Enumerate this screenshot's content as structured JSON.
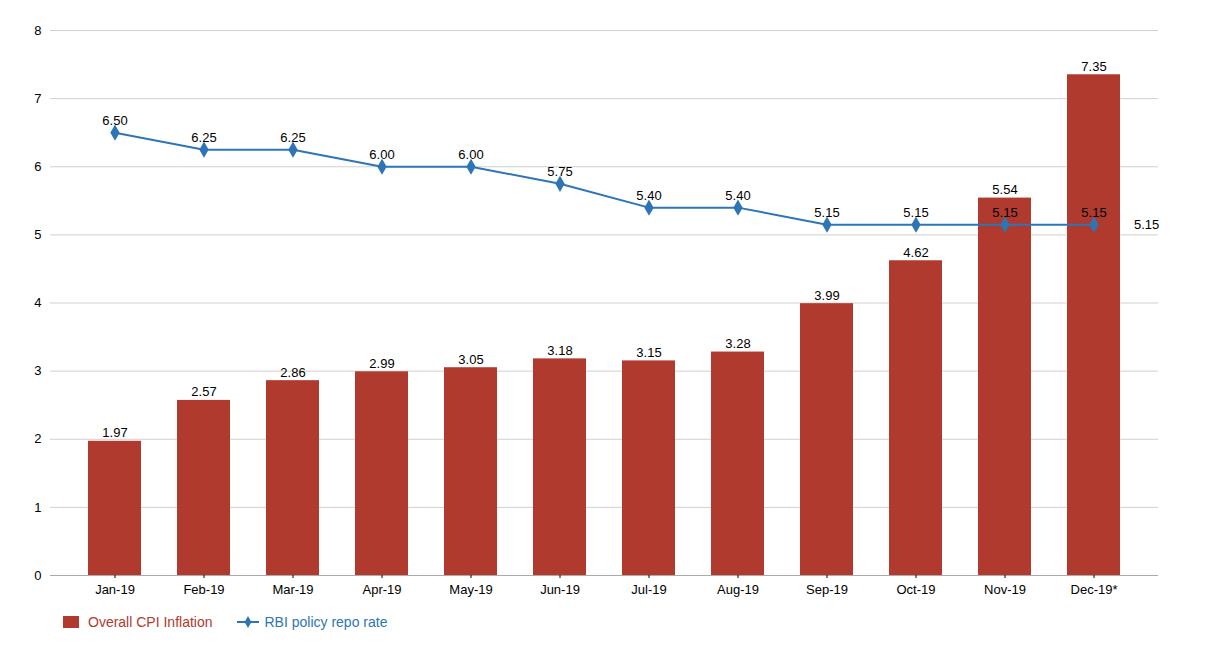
{
  "chart_data": {
    "type": "bar",
    "categories": [
      "Jan-19",
      "Feb-19",
      "Mar-19",
      "Apr-19",
      "May-19",
      "Jun-19",
      "Jul-19",
      "Aug-19",
      "Sep-19",
      "Oct-19",
      "Nov-19",
      "Dec-19*"
    ],
    "series": [
      {
        "name": "Overall CPI Inflation",
        "type": "bar",
        "color": "#B03A2E",
        "values": [
          1.97,
          2.57,
          2.86,
          2.99,
          3.05,
          3.18,
          3.15,
          3.28,
          3.99,
          4.62,
          5.54,
          7.35
        ]
      },
      {
        "name": "RBI policy repo rate",
        "type": "line",
        "color": "#2E75B6",
        "marker": "diamond",
        "values": [
          6.5,
          6.25,
          6.25,
          6.0,
          6.0,
          5.75,
          5.4,
          5.4,
          5.15,
          5.15,
          5.15,
          5.15
        ],
        "value_labels": [
          "6.50",
          "6.25",
          "6.25",
          "6.00",
          "6.00",
          "5.75",
          "5.40",
          "5.40",
          "5.15",
          "5.15",
          "5.15",
          "5.15"
        ]
      }
    ],
    "annotations": [
      {
        "text": "5.15",
        "x": "Dec-19*",
        "y": 5.15
      }
    ],
    "ylim": [
      0,
      8
    ],
    "yticks": [
      0,
      1,
      2,
      3,
      4,
      5,
      6,
      7,
      8
    ],
    "grid": true,
    "data_labels": true,
    "legend": "lower left"
  }
}
